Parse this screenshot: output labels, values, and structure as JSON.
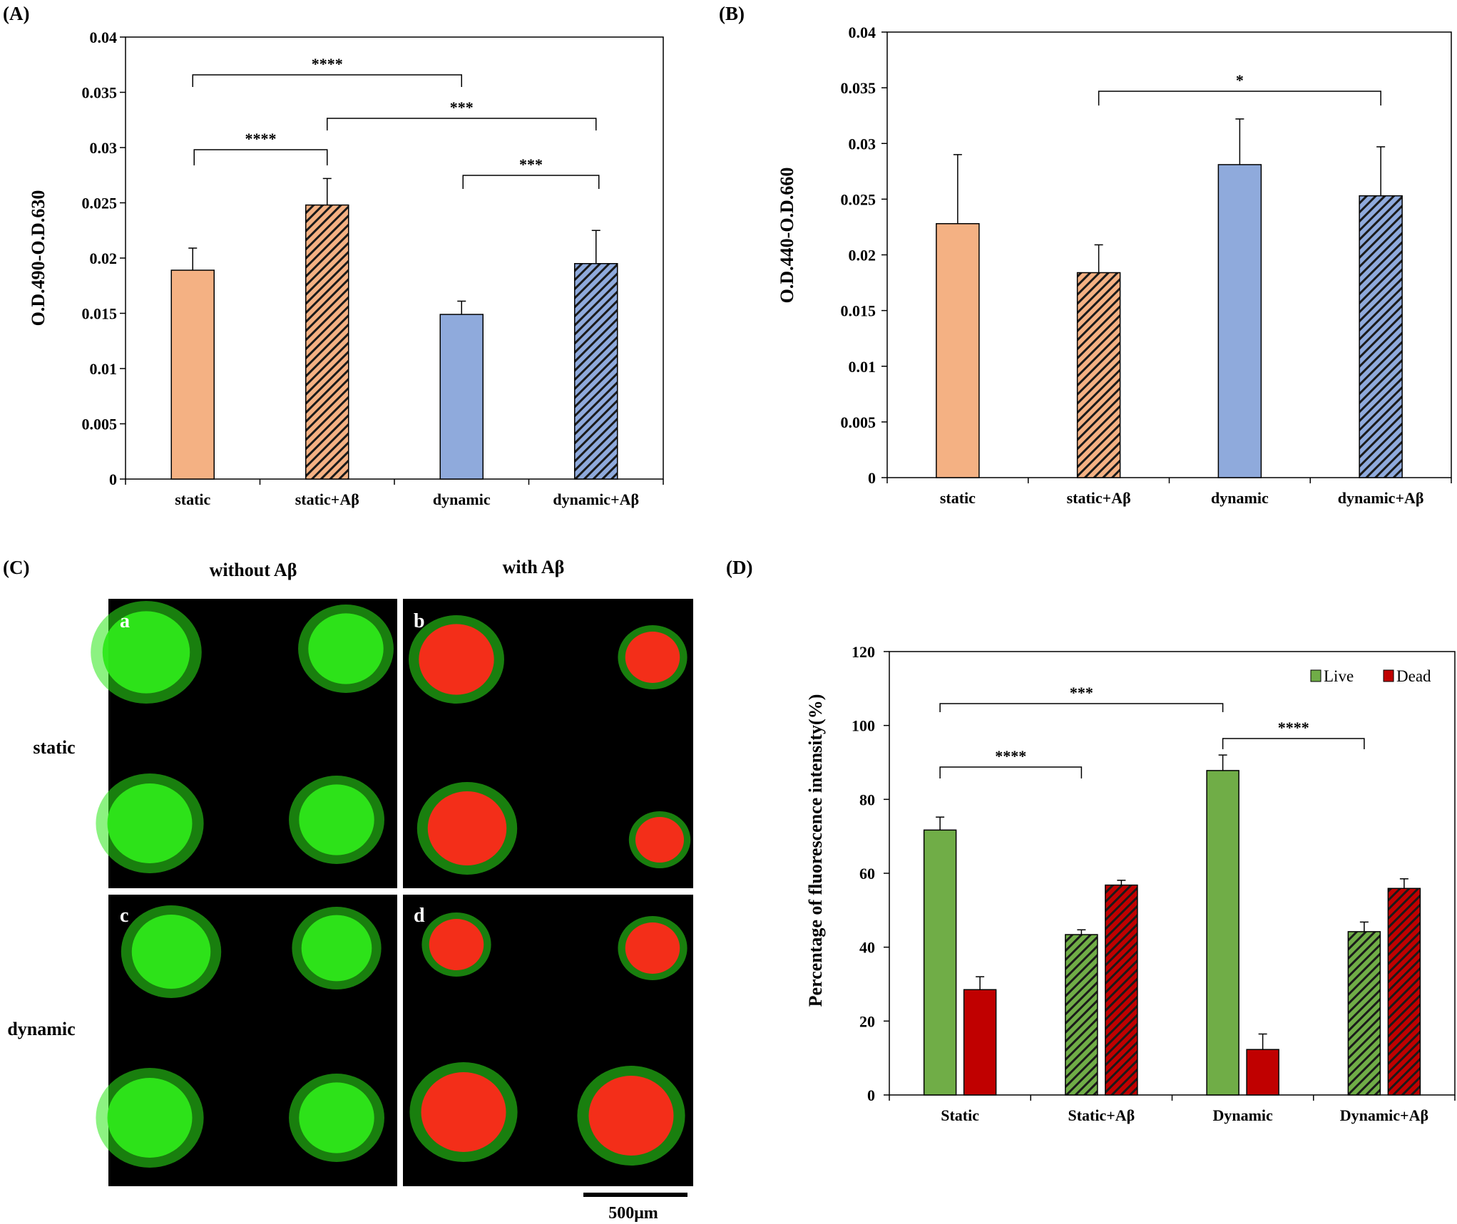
{
  "panels": {
    "A": {
      "label": "(A)"
    },
    "B": {
      "label": "(B)"
    },
    "C": {
      "label": "(C)",
      "col_headers": [
        "without Aβ",
        "with Aβ"
      ],
      "row_headers": [
        "static",
        "dynamic"
      ],
      "image_labels": [
        "a",
        "b",
        "c",
        "d"
      ],
      "scale_bar_label": "500μm"
    },
    "D": {
      "label": "(D)"
    }
  },
  "colors": {
    "static": "#f4b183",
    "dynamic": "#8faadc",
    "live": "#70ad47",
    "dead": "#c00000",
    "micrograph_background": "#000000",
    "stain_live": "#2ee81a",
    "stain_dead": "#ff2a1a"
  },
  "chart_data": [
    {
      "panel": "A",
      "type": "bar",
      "title": "",
      "xlabel": "",
      "ylabel": "O.D.490-O.D.630",
      "categories": [
        "static",
        "static+Aβ",
        "dynamic",
        "dynamic+Aβ"
      ],
      "values": [
        0.0189,
        0.0248,
        0.0149,
        0.0195
      ],
      "errors": [
        0.002,
        0.0024,
        0.0012,
        0.003
      ],
      "hatched": [
        false,
        true,
        false,
        true
      ],
      "color_keys": [
        "static",
        "static",
        "dynamic",
        "dynamic"
      ],
      "ylim": [
        0,
        0.04
      ],
      "yticks": [
        "0",
        "0.005",
        "0.01",
        "0.015",
        "0.02",
        "0.025",
        "0.03",
        "0.035",
        "0.04"
      ],
      "grid": false,
      "significance": [
        {
          "from": 0,
          "to": 2,
          "label": "****"
        },
        {
          "from": 0,
          "to": 1,
          "label": "****"
        },
        {
          "from": 1,
          "to": 3,
          "label": "***"
        },
        {
          "from": 2,
          "to": 3,
          "label": "***"
        }
      ]
    },
    {
      "panel": "B",
      "type": "bar",
      "title": "",
      "xlabel": "",
      "ylabel": "O.D.440-O.D.660",
      "categories": [
        "static",
        "static+Aβ",
        "dynamic",
        "dynamic+Aβ"
      ],
      "values": [
        0.0228,
        0.0184,
        0.0281,
        0.0253
      ],
      "errors": [
        0.0062,
        0.0025,
        0.0041,
        0.0044
      ],
      "hatched": [
        false,
        true,
        false,
        true
      ],
      "color_keys": [
        "static",
        "static",
        "dynamic",
        "dynamic"
      ],
      "ylim": [
        0,
        0.04
      ],
      "yticks": [
        "0",
        "0.005",
        "0.01",
        "0.015",
        "0.02",
        "0.025",
        "0.03",
        "0.035",
        "0.04"
      ],
      "grid": false,
      "significance": [
        {
          "from": 1,
          "to": 3,
          "label": "*"
        }
      ]
    },
    {
      "panel": "D",
      "type": "bar",
      "title": "",
      "xlabel": "",
      "ylabel": "Percentage of fluorescence intensity(%)",
      "categories": [
        "Static",
        "Static+Aβ",
        "Dynamic",
        "Dynamic+Aβ"
      ],
      "series": [
        {
          "name": "Live",
          "values": [
            71.7,
            43.4,
            87.8,
            44.2
          ],
          "errors": [
            3.5,
            1.3,
            4.2,
            2.6
          ],
          "color_key": "live"
        },
        {
          "name": "Dead",
          "values": [
            28.5,
            56.8,
            12.3,
            55.9
          ],
          "errors": [
            3.5,
            1.3,
            4.2,
            2.6
          ],
          "color_key": "dead"
        }
      ],
      "hatched": [
        false,
        true,
        false,
        true
      ],
      "ylim": [
        0,
        120
      ],
      "yticks": [
        "0",
        "20",
        "40",
        "60",
        "80",
        "100",
        "120"
      ],
      "legend": "top-right",
      "grid": false,
      "significance": [
        {
          "from": 0,
          "to": 2,
          "label": "***"
        },
        {
          "from": 0,
          "to": 1,
          "label": "****"
        },
        {
          "from": 2,
          "to": 3,
          "label": "****"
        }
      ]
    }
  ]
}
